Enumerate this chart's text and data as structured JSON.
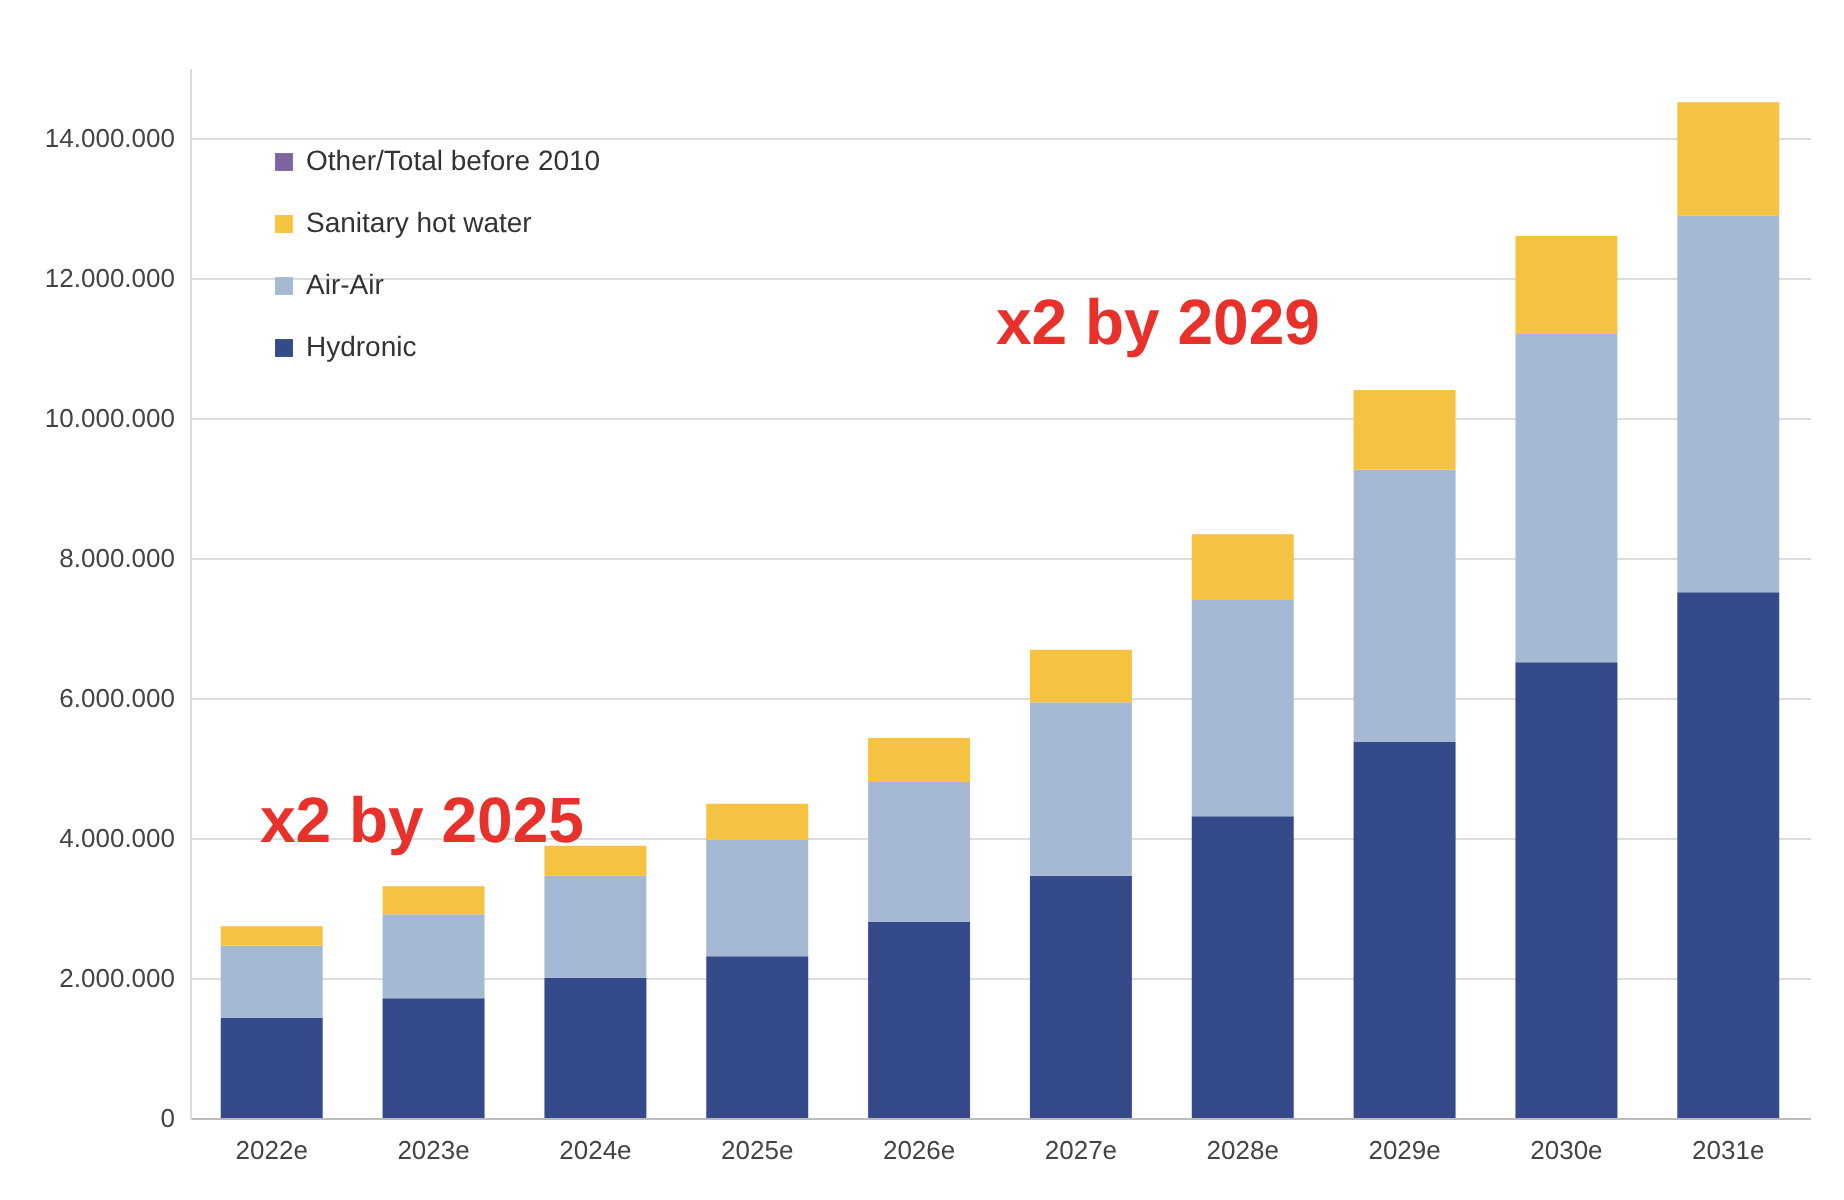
{
  "chart_data": {
    "type": "bar",
    "stacked": true,
    "categories": [
      "2022e",
      "2023e",
      "2024e",
      "2025e",
      "2026e",
      "2027e",
      "2028e",
      "2029e",
      "2030e",
      "2031e"
    ],
    "series": [
      {
        "name": "Hydronic",
        "color": "#344a8a",
        "values": [
          1430000,
          1710000,
          2000000,
          2310000,
          2800000,
          3460000,
          4310000,
          5370000,
          6510000,
          7510000
        ]
      },
      {
        "name": "Air-Air",
        "color": "#a5b9d4",
        "values": [
          1030000,
          1200000,
          1460000,
          1660000,
          2000000,
          2480000,
          3090000,
          3890000,
          4690000,
          5380000
        ]
      },
      {
        "name": "Sanitary hot water",
        "color": "#f5c242",
        "values": [
          280000,
          400000,
          430000,
          520000,
          630000,
          750000,
          940000,
          1140000,
          1400000,
          1620000
        ]
      },
      {
        "name": "Other/Total before 2010",
        "color": "#8064a2",
        "values": [
          null,
          null,
          null,
          null,
          null,
          null,
          null,
          null,
          null,
          null
        ]
      }
    ],
    "ylim": [
      0,
      15000000
    ],
    "yticks": [
      0,
      {
        "value": 2000000,
        "label": "2.000.000"
      },
      {
        "value": 4000000,
        "label": "4.000.000"
      },
      {
        "value": 6000000,
        "label": "6.000.000"
      },
      {
        "value": 8000000,
        "label": "8.000.000"
      },
      {
        "value": 10000000,
        "label": "10.000.000"
      },
      {
        "value": 12000000,
        "label": "12.000.000"
      },
      {
        "value": 14000000,
        "label": "14.000.000"
      }
    ],
    "grid": "y",
    "legend": "top left",
    "annotations": [
      "x2 by 2025",
      "x2 by 2029"
    ]
  }
}
